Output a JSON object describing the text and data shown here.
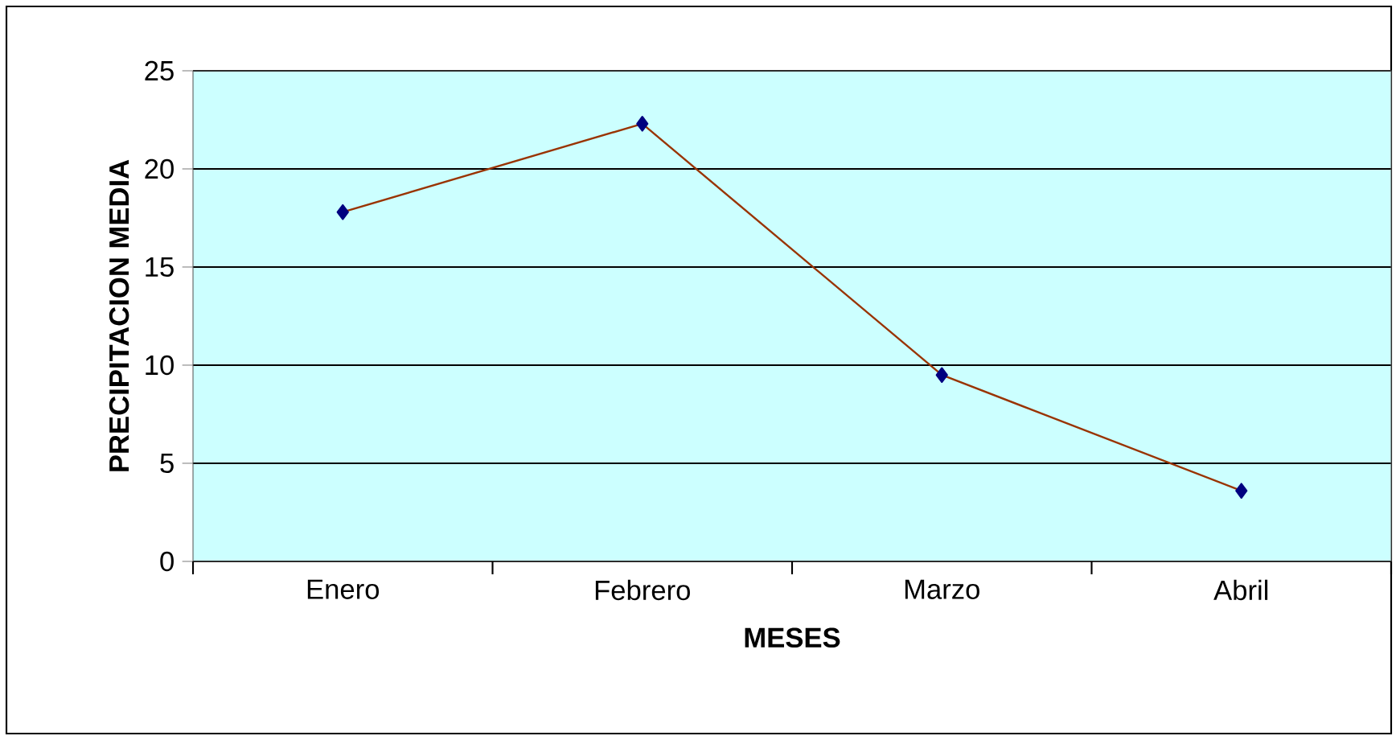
{
  "chart_data": {
    "type": "line",
    "xlabel": "MESES",
    "ylabel": "PRECIPITACION MEDIA",
    "categories": [
      "Enero",
      "Febrero",
      "Marzo",
      "Abril"
    ],
    "series": [
      {
        "color": "#993300",
        "values": [
          17.8,
          22.3,
          9.5,
          3.6
        ]
      }
    ],
    "ylim": [
      0,
      25
    ],
    "yticks": [
      0,
      5,
      10,
      15,
      20,
      25
    ],
    "grid": "y",
    "marker": "diamond"
  }
}
